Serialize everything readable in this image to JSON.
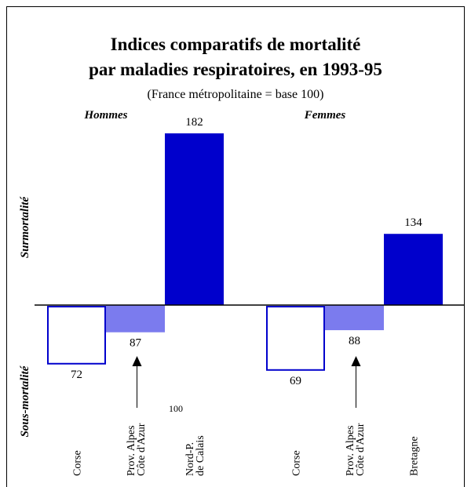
{
  "chart_data": {
    "type": "bar",
    "title": [
      "Indices comparatifs de mortalité",
      "par maladies respiratoires, en 1993-95"
    ],
    "subtitle": "(France métropolitaine = base 100)",
    "y_labels": {
      "above": "Surmortalité",
      "below": "Sous-mortalité"
    },
    "baseline": 100,
    "groups": [
      {
        "name": "Hommes",
        "categories": [
          [
            "Corse"
          ],
          [
            "Prov. Alpes",
            "Côte d'Azur"
          ],
          [
            "Nord-P.",
            "de Calais"
          ]
        ],
        "values": [
          72,
          87,
          182
        ],
        "colors": [
          "#ffffff",
          "#7b7bee",
          "#0000cc"
        ]
      },
      {
        "name": "Femmes",
        "categories": [
          [
            "Corse"
          ],
          [
            "Prov. Alpes",
            "Côte d'Azur"
          ],
          [
            "Bretagne"
          ]
        ],
        "values": [
          69,
          88,
          134
        ],
        "colors": [
          "#ffffff",
          "#7b7bee",
          "#0000cc"
        ]
      }
    ],
    "edge_color": "#0000cc"
  }
}
